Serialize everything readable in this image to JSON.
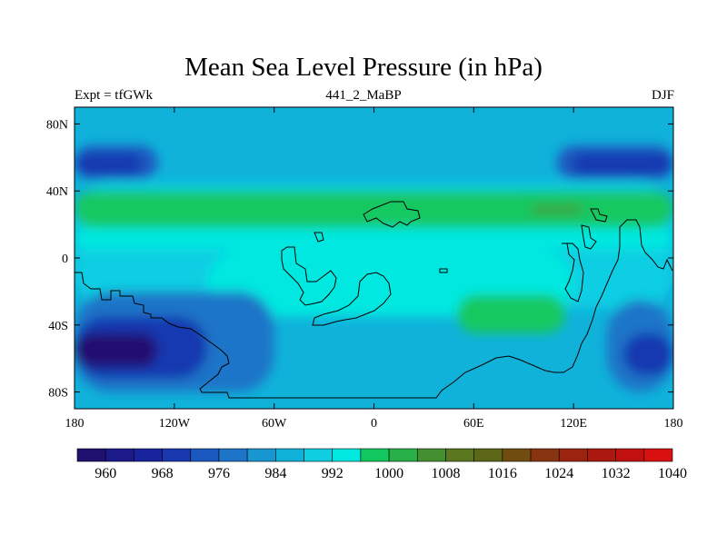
{
  "title": "Mean Sea Level Pressure (in hPa)",
  "subtitle_left": "Expt = tfGWk",
  "subtitle_center": "441_2_MaBP",
  "subtitle_right": "DJF",
  "axes": {
    "lat_ticks": [
      {
        "value": 80,
        "label": "80N"
      },
      {
        "value": 40,
        "label": "40N"
      },
      {
        "value": 0,
        "label": "0"
      },
      {
        "value": -40,
        "label": "40S"
      },
      {
        "value": -80,
        "label": "80S"
      }
    ],
    "lon_ticks": [
      {
        "value": -180,
        "label": "180"
      },
      {
        "value": -120,
        "label": "120W"
      },
      {
        "value": -60,
        "label": "60W"
      },
      {
        "value": 0,
        "label": "0"
      },
      {
        "value": 60,
        "label": "60E"
      },
      {
        "value": 120,
        "label": "120E"
      },
      {
        "value": 180,
        "label": "180"
      }
    ]
  },
  "colorbar": {
    "colors": [
      "#201070",
      "#1c1a8a",
      "#1a239e",
      "#1838b0",
      "#1a58c0",
      "#1e74c8",
      "#1896d2",
      "#10b2da",
      "#10cee2",
      "#00e8e0",
      "#12c860",
      "#28b048",
      "#449030",
      "#5a7820",
      "#5c6818",
      "#704c10",
      "#883410",
      "#9a2410",
      "#aa1810",
      "#c01010",
      "#d81010"
    ],
    "labels": [
      {
        "index": 1,
        "text": "960"
      },
      {
        "index": 3,
        "text": "968"
      },
      {
        "index": 5,
        "text": "976"
      },
      {
        "index": 7,
        "text": "984"
      },
      {
        "index": 9,
        "text": "992"
      },
      {
        "index": 11,
        "text": "1000"
      },
      {
        "index": 13,
        "text": "1008"
      },
      {
        "index": 15,
        "text": "1016"
      },
      {
        "index": 17,
        "text": "1024"
      },
      {
        "index": 19,
        "text": "1032"
      },
      {
        "index": 21,
        "text": "1040"
      }
    ]
  },
  "field": {
    "background": "#10b2da",
    "regions": [
      {
        "name": "mid-ocean-band",
        "color": "#10cee2",
        "lon": [
          -180,
          180
        ],
        "lat": [
          -30,
          45
        ]
      },
      {
        "name": "north-high-band",
        "color": "#12c860",
        "lon": [
          -180,
          180
        ],
        "lat": [
          18,
          40
        ]
      },
      {
        "name": "north-band-turquoise",
        "color": "#00e8e0",
        "lon": [
          -180,
          180
        ],
        "lat": [
          5,
          18
        ]
      },
      {
        "name": "equatorial-turquoise",
        "color": "#00e8e0",
        "lon": [
          -100,
          120
        ],
        "lat": [
          -35,
          5
        ]
      },
      {
        "name": "south-indian-high",
        "color": "#12c860",
        "lon": [
          50,
          115
        ],
        "lat": [
          -45,
          -22
        ]
      },
      {
        "name": "north-pacific-low-west",
        "color": "#1a58c0",
        "lon": [
          -180,
          -130
        ],
        "lat": [
          47,
          67
        ]
      },
      {
        "name": "north-pacific-low-east",
        "color": "#1a58c0",
        "lon": [
          110,
          180
        ],
        "lat": [
          47,
          67
        ]
      },
      {
        "name": "north-pacific-core-west",
        "color": "#1838b0",
        "lon": [
          -180,
          -140
        ],
        "lat": [
          50,
          62
        ]
      },
      {
        "name": "north-pacific-core-east",
        "color": "#1838b0",
        "lon": [
          120,
          180
        ],
        "lat": [
          50,
          62
        ]
      },
      {
        "name": "south-pacific-low",
        "color": "#1e74c8",
        "lon": [
          -180,
          -60
        ],
        "lat": [
          -80,
          -20
        ]
      },
      {
        "name": "south-pacific-core",
        "color": "#1838b0",
        "lon": [
          -180,
          -100
        ],
        "lat": [
          -72,
          -35
        ]
      },
      {
        "name": "south-pacific-deep",
        "color": "#201070",
        "lon": [
          -180,
          -130
        ],
        "lat": [
          -65,
          -45
        ]
      },
      {
        "name": "west-pacific-low",
        "color": "#1e74c8",
        "lon": [
          140,
          180
        ],
        "lat": [
          -80,
          -25
        ]
      },
      {
        "name": "west-pacific-core",
        "color": "#1838b0",
        "lon": [
          150,
          180
        ],
        "lat": [
          -70,
          -45
        ]
      },
      {
        "name": "high-core",
        "color": "#449030",
        "lon": [
          95,
          125
        ],
        "lat": [
          27,
          31
        ]
      }
    ],
    "coastline_color": "#000000"
  }
}
